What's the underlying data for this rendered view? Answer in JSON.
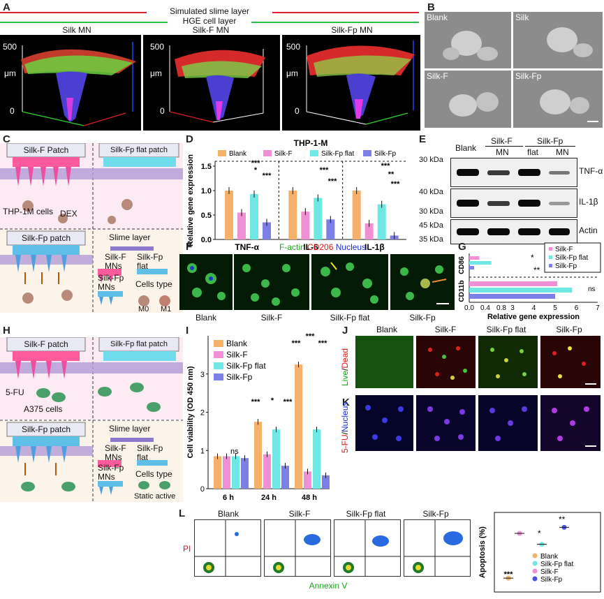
{
  "panels": {
    "A": {
      "label": "A",
      "legend_slime": "Simulated slime layer",
      "legend_hge": "HGE cell layer",
      "titles": [
        "Silk MN",
        "Silk-F MN",
        "Silk-Fp MN"
      ],
      "axis_top": "500",
      "axis_unit": "μm",
      "axis_zero": "0"
    },
    "B": {
      "label": "B",
      "tiles": [
        "Blank",
        "Silk",
        "Silk-F",
        "Silk-Fp"
      ]
    },
    "C": {
      "label": "C",
      "silkf_patch": "Silk-F Patch",
      "flat_patch": "Silk-Fp flat patch",
      "thp_cells": "THP-1M cells",
      "dex": "DEX",
      "silkfp_patch": "Silk-Fp patch",
      "slime_layer": "Slime layer",
      "silkf_mns": "Silk-F\nMNs",
      "silkfp_flat": "Silk-Fp\nflat",
      "silkfp_mns": "Silk-Fp\nMNs",
      "cells_type": "Cells type",
      "m0": "M0",
      "m1": "M1"
    },
    "D": {
      "label": "D",
      "title": "THP-1-M",
      "ylabel": "Relative gene expression",
      "legend": [
        "Blank",
        "Silk-F",
        "Silk-Fp flat",
        "Silk-Fp"
      ],
      "groups": [
        "TNF-α",
        "IL-6",
        "IL-1β"
      ],
      "yticks": [
        "0.0",
        "0.5",
        "1.0",
        "1.5"
      ]
    },
    "E": {
      "label": "E",
      "col_blank": "Blank",
      "col_silkf": "Silk-F",
      "col_silkfp": "Silk-Fp",
      "sub_mn1": "MN",
      "sub_flat": "flat",
      "sub_mn2": "MN",
      "kda": [
        "30 kDa",
        "40 kDa",
        "30 kDa",
        "45 kDa",
        "35 kDa"
      ],
      "proteins": [
        "TNF-α",
        "IL-1β",
        "Actin"
      ]
    },
    "F": {
      "label": "F",
      "stain_factin": "F-actin",
      "stain_cd206": "CD206",
      "stain_nucleus": "Nucleus",
      "tiles": [
        "Blank",
        "Silk-F",
        "Silk-Fp flat",
        "Silk-Fp"
      ]
    },
    "G": {
      "label": "G",
      "cd86": "CD86",
      "cd11b": "CD11b",
      "legend": [
        "Silk-F",
        "Silk-Fp flat",
        "Silk-Fp"
      ],
      "xlabel": "Relative gene expression",
      "xticks_left": [
        "0.0",
        "0.4",
        "0.8"
      ],
      "xticks_right": [
        "3",
        "4",
        "5",
        "6",
        "7"
      ],
      "sig1": "*",
      "sig2": "**",
      "sig_ns": "ns"
    },
    "H": {
      "label": "H",
      "silkf_patch": "Silk-F patch",
      "flat_patch": "Silk-Fp flat patch",
      "fu": "5-FU",
      "a375": "A375 cells",
      "silkfp_patch": "Silk-Fp patch",
      "slime_layer": "Slime layer",
      "silkf_mns": "Silk-F\nMNs",
      "silkfp_flat": "Silk-Fp\nflat",
      "silkfp_mns": "Silk-Fp\nMNs",
      "cells_type": "Cells type",
      "static_active": "Static active"
    },
    "I": {
      "label": "I",
      "ylabel": "Cell viability (OD 450 nm)",
      "legend": [
        "Blank",
        "Silk-F",
        "Silk-Fp flat",
        "Silk-Fp"
      ],
      "groups": [
        "6 h",
        "24 h",
        "48 h"
      ],
      "yticks": [
        "0",
        "1",
        "2",
        "3"
      ],
      "ns": "ns",
      "sig_24": [
        "***",
        "*",
        "***"
      ],
      "sig_48": [
        "***",
        "***",
        "***"
      ]
    },
    "J": {
      "label": "J",
      "cols": [
        "Blank",
        "Silk-F",
        "Silk-Fp flat",
        "Silk-Fp"
      ],
      "side_live": "Live",
      "side_dead": "Dead"
    },
    "K": {
      "label": "K",
      "side_fu": "5-FU",
      "side_nucleus": "Nucleus"
    },
    "L": {
      "label": "L",
      "tiles": [
        "Blank",
        "Silk-F",
        "Silk-Fp flat",
        "Silk-Fp"
      ],
      "pi": "PI",
      "annexin": "Annexin V",
      "ylabel": "Apoptosis (%)",
      "legend": [
        "Blank",
        "Silk-Fp flat",
        "Silk-F",
        "Silk-Fp"
      ],
      "sig_star": "*",
      "sig_two": "**",
      "sig_three": "***"
    }
  },
  "chart_data": [
    {
      "panel": "D",
      "type": "bar",
      "title": "THP-1-M",
      "ylabel": "Relative gene expression",
      "ylim": [
        0,
        1.6
      ],
      "categories": [
        "TNF-α",
        "IL-6",
        "IL-1β"
      ],
      "series": [
        {
          "name": "Blank",
          "color": "#f5b16a",
          "values": [
            1.0,
            1.0,
            1.0
          ]
        },
        {
          "name": "Silk-F",
          "color": "#f08fd6",
          "values": [
            0.55,
            0.57,
            0.33
          ]
        },
        {
          "name": "Silk-Fp flat",
          "color": "#6fe7e4",
          "values": [
            0.93,
            0.85,
            0.72
          ]
        },
        {
          "name": "Silk-Fp",
          "color": "#7b7fe6",
          "values": [
            0.35,
            0.41,
            0.08
          ]
        }
      ],
      "significance": [
        "***",
        "*",
        "***",
        "***",
        "***",
        "***",
        "**",
        "***"
      ]
    },
    {
      "panel": "G",
      "type": "bar",
      "orientation": "horizontal",
      "xlabel": "Relative gene expression",
      "categories": [
        "CD86",
        "CD11b"
      ],
      "series": [
        {
          "name": "Silk-F",
          "color": "#f08fd6",
          "values": [
            0.25,
            5.1
          ]
        },
        {
          "name": "Silk-Fp flat",
          "color": "#6fe7e4",
          "values": [
            0.55,
            5.8
          ]
        },
        {
          "name": "Silk-Fp",
          "color": "#7b7fe6",
          "values": [
            0.12,
            5.0
          ]
        }
      ]
    },
    {
      "panel": "I",
      "type": "bar",
      "ylabel": "Cell viability (OD 450 nm)",
      "ylim": [
        0,
        4
      ],
      "categories": [
        "6 h",
        "24 h",
        "48 h"
      ],
      "series": [
        {
          "name": "Blank",
          "color": "#f5b16a",
          "values": [
            0.85,
            1.75,
            3.25
          ]
        },
        {
          "name": "Silk-F",
          "color": "#f08fd6",
          "values": [
            0.85,
            0.9,
            0.45
          ]
        },
        {
          "name": "Silk-Fp flat",
          "color": "#6fe7e4",
          "values": [
            0.85,
            1.55,
            1.55
          ]
        },
        {
          "name": "Silk-Fp",
          "color": "#7b7fe6",
          "values": [
            0.8,
            0.6,
            0.35
          ]
        }
      ]
    },
    {
      "panel": "L",
      "type": "scatter",
      "ylabel": "Apoptosis (%)",
      "series": [
        {
          "name": "Blank",
          "color": "#f5b16a",
          "values": [
            8
          ]
        },
        {
          "name": "Silk-Fp flat",
          "color": "#6fe7e4",
          "values": [
            36
          ]
        },
        {
          "name": "Silk-F",
          "color": "#f08fd6",
          "values": [
            45
          ]
        },
        {
          "name": "Silk-Fp",
          "color": "#4b52e6",
          "values": [
            50
          ]
        }
      ]
    }
  ]
}
